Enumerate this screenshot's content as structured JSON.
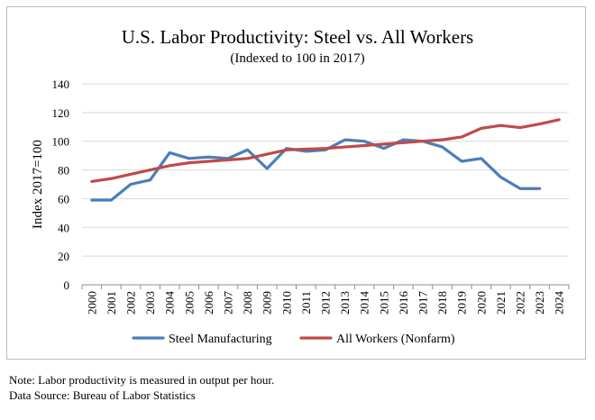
{
  "chart_data": {
    "type": "line",
    "title": "U.S. Labor Productivity: Steel vs. All Workers",
    "subtitle": "(Indexed to 100 in 2017)",
    "xlabel": "",
    "ylabel": "Index 2017=100",
    "ylim": [
      0,
      140
    ],
    "yticks": [
      0,
      20,
      40,
      60,
      80,
      100,
      120,
      140
    ],
    "grid": true,
    "legend_position": "bottom",
    "categories": [
      "2000",
      "2001",
      "2002",
      "2003",
      "2004",
      "2005",
      "2006",
      "2007",
      "2008",
      "2009",
      "2010",
      "2011",
      "2012",
      "2013",
      "2014",
      "2015",
      "2016",
      "2017",
      "2018",
      "2019",
      "2020",
      "2021",
      "2022",
      "2023",
      "2024"
    ],
    "series": [
      {
        "name": "Steel Manufacturing",
        "color": "#4a7ebb",
        "values": [
          59,
          59,
          70,
          73,
          92,
          88,
          89,
          88,
          94,
          81,
          95,
          93,
          94,
          101,
          100,
          95,
          101,
          100,
          96,
          86,
          88,
          75,
          67,
          67,
          null
        ]
      },
      {
        "name": "All Workers (Nonfarm)",
        "color": "#be4b48",
        "values": [
          72,
          74,
          77,
          80,
          83,
          85,
          86,
          87,
          88,
          91,
          94,
          94.5,
          95,
          96,
          97,
          98,
          99,
          100,
          101,
          103,
          109,
          111,
          109.5,
          112,
          115
        ]
      }
    ]
  },
  "notes": {
    "line1": "Note: Labor productivity is measured in output per hour.",
    "line2": "Data Source: Bureau of Labor Statistics"
  }
}
